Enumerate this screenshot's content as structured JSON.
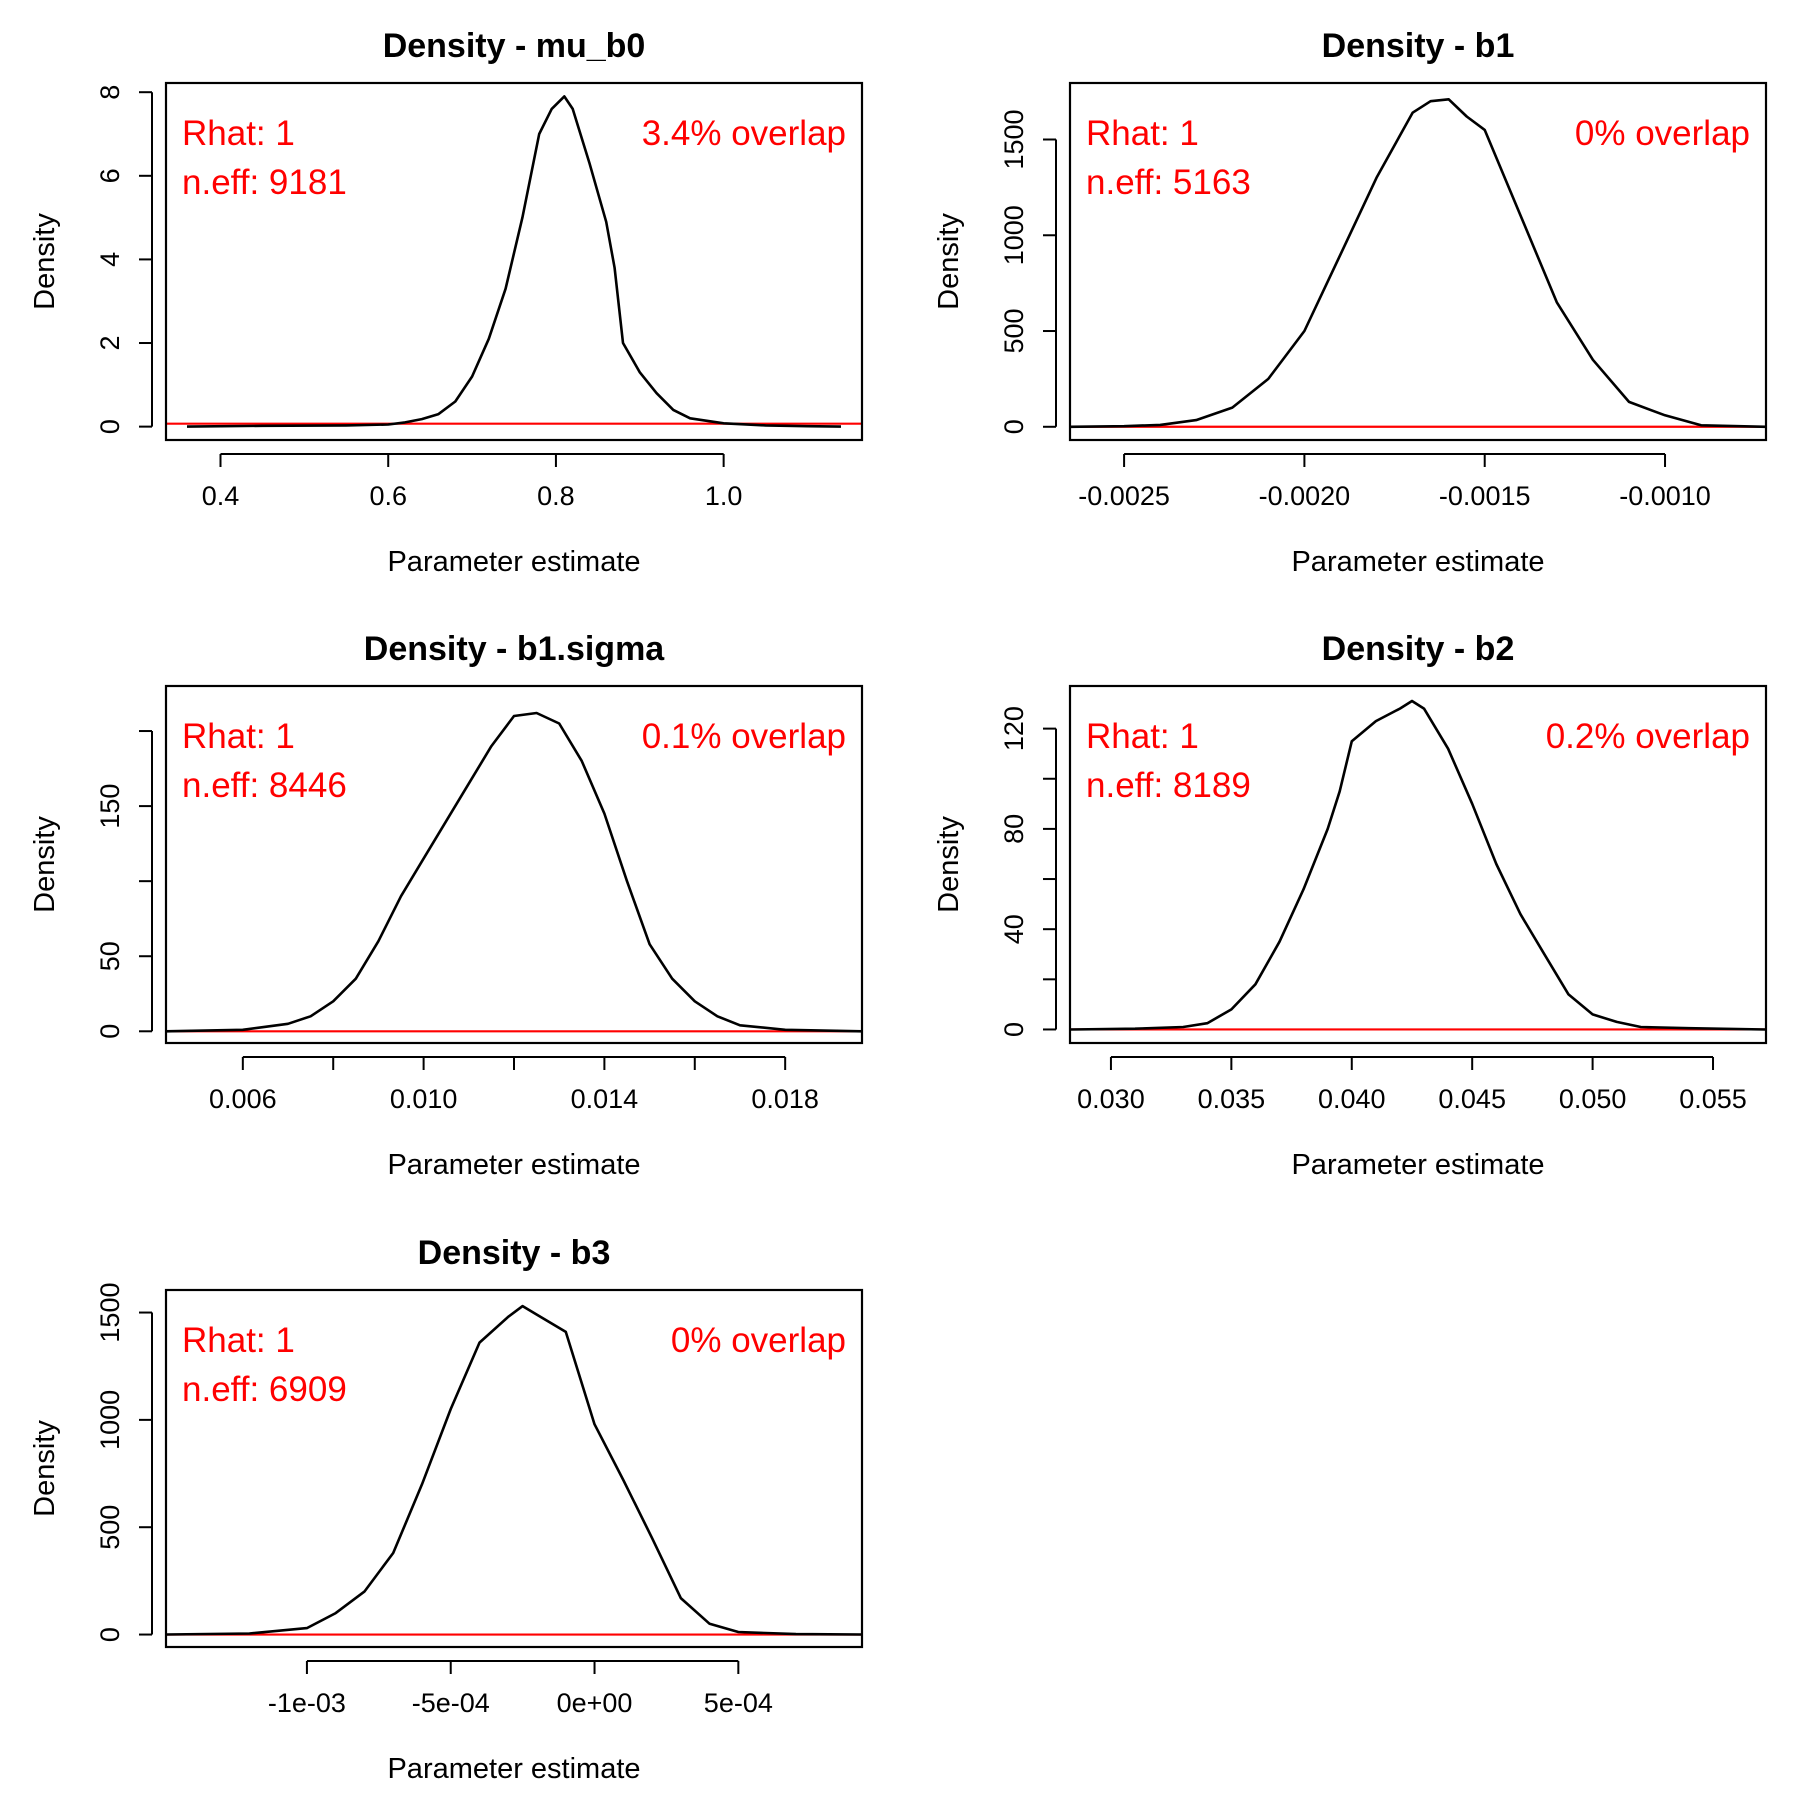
{
  "colors": {
    "density_line": "#000000",
    "zero_line": "#ff0000",
    "annotation": "#ff0000"
  },
  "chart_data": [
    {
      "type": "line",
      "title": "Density - mu_b0",
      "xlabel": "Parameter estimate",
      "ylabel": "Density",
      "xlim": [
        0.335,
        1.165
      ],
      "ylim": [
        -0.32,
        8.22
      ],
      "xticks": [
        0.4,
        0.6,
        0.8,
        1.0
      ],
      "xtick_labels": [
        "0.4",
        "0.6",
        "0.8",
        "1.0"
      ],
      "yticks": [
        0,
        2,
        4,
        6,
        8
      ],
      "ytick_labels": [
        "0",
        "2",
        "4",
        "6",
        "8"
      ],
      "rhat_label": "Rhat: 1",
      "neff_label": "n.eff: 9181",
      "overlap_label": "3.4% overlap",
      "hline": 0.07,
      "series": [
        {
          "x": [
            0.36,
            0.45,
            0.55,
            0.6,
            0.62,
            0.64,
            0.66,
            0.68,
            0.7,
            0.72,
            0.74,
            0.76,
            0.78,
            0.795,
            0.81,
            0.82,
            0.84,
            0.86,
            0.87,
            0.88,
            0.9,
            0.92,
            0.94,
            0.96,
            1.0,
            1.05,
            1.1,
            1.14
          ],
          "y": [
            0.0,
            0.02,
            0.03,
            0.05,
            0.1,
            0.18,
            0.3,
            0.6,
            1.2,
            2.1,
            3.3,
            5.0,
            7.0,
            7.6,
            7.9,
            7.6,
            6.3,
            4.9,
            3.8,
            2.0,
            1.3,
            0.8,
            0.4,
            0.2,
            0.08,
            0.03,
            0.01,
            0.0
          ]
        }
      ]
    },
    {
      "type": "line",
      "title": "Density - b1",
      "xlabel": "Parameter estimate",
      "ylabel": "Density",
      "xlim": [
        -0.00265,
        -0.00072
      ],
      "ylim": [
        -69,
        1795
      ],
      "xticks": [
        -0.0025,
        -0.002,
        -0.0015,
        -0.001
      ],
      "xtick_labels": [
        "-0.0025",
        "-0.0020",
        "-0.0015",
        "-0.0010"
      ],
      "yticks": [
        0,
        500,
        1000,
        1500
      ],
      "ytick_labels": [
        "0",
        "500",
        "1000",
        "1500"
      ],
      "rhat_label": "Rhat: 1",
      "neff_label": "n.eff: 5163",
      "overlap_label": "0% overlap",
      "hline": 0,
      "series": [
        {
          "x": [
            -0.00265,
            -0.0025,
            -0.0024,
            -0.0023,
            -0.0022,
            -0.0021,
            -0.002,
            -0.0019,
            -0.0018,
            -0.0017,
            -0.00165,
            -0.0016,
            -0.00155,
            -0.0015,
            -0.0014,
            -0.0013,
            -0.0012,
            -0.0011,
            -0.001,
            -0.0009,
            -0.00072
          ],
          "y": [
            0,
            3,
            10,
            35,
            100,
            250,
            500,
            900,
            1300,
            1640,
            1700,
            1710,
            1620,
            1550,
            1100,
            650,
            350,
            130,
            60,
            8,
            0
          ]
        }
      ]
    },
    {
      "type": "line",
      "title": "Density - b1.sigma",
      "xlabel": "Parameter estimate",
      "ylabel": "Density",
      "xlim": [
        0.0043,
        0.0197
      ],
      "ylim": [
        -7.8,
        230
      ],
      "xticks": [
        0.006,
        0.008,
        0.01,
        0.012,
        0.014,
        0.016,
        0.018
      ],
      "xtick_labels": [
        "0.006",
        "",
        "0.010",
        "",
        "0.014",
        "",
        "0.018"
      ],
      "yticks": [
        0,
        50,
        100,
        150,
        200
      ],
      "ytick_labels": [
        "0",
        "50",
        "",
        "150",
        ""
      ],
      "rhat_label": "Rhat: 1",
      "neff_label": "n.eff: 8446",
      "overlap_label": "0.1% overlap",
      "hline": 0,
      "series": [
        {
          "x": [
            0.0043,
            0.006,
            0.0065,
            0.007,
            0.0075,
            0.008,
            0.0085,
            0.009,
            0.0095,
            0.01,
            0.0105,
            0.011,
            0.0115,
            0.012,
            0.0125,
            0.013,
            0.0135,
            0.014,
            0.0145,
            0.015,
            0.0155,
            0.016,
            0.0165,
            0.017,
            0.018,
            0.0197
          ],
          "y": [
            0,
            1,
            3,
            5,
            10,
            20,
            35,
            60,
            90,
            115,
            140,
            165,
            190,
            210,
            212,
            205,
            180,
            145,
            100,
            58,
            35,
            20,
            10,
            4,
            1,
            0
          ]
        }
      ]
    },
    {
      "type": "line",
      "title": "Density - b2",
      "xlabel": "Parameter estimate",
      "ylabel": "Density",
      "xlim": [
        0.0283,
        0.0572
      ],
      "ylim": [
        -5.4,
        137
      ],
      "xticks": [
        0.03,
        0.035,
        0.04,
        0.045,
        0.05,
        0.055
      ],
      "xtick_labels": [
        "0.030",
        "0.035",
        "0.040",
        "0.045",
        "0.050",
        "0.055"
      ],
      "yticks": [
        0,
        20,
        40,
        60,
        80,
        100,
        120
      ],
      "ytick_labels": [
        "0",
        "",
        "40",
        "",
        "80",
        "",
        "120"
      ],
      "rhat_label": "Rhat: 1",
      "neff_label": "n.eff: 8189",
      "overlap_label": "0.2% overlap",
      "hline": 0,
      "series": [
        {
          "x": [
            0.0283,
            0.031,
            0.033,
            0.034,
            0.035,
            0.036,
            0.037,
            0.038,
            0.039,
            0.0395,
            0.04,
            0.041,
            0.042,
            0.0425,
            0.043,
            0.044,
            0.045,
            0.046,
            0.047,
            0.048,
            0.049,
            0.05,
            0.051,
            0.052,
            0.054,
            0.0572
          ],
          "y": [
            0,
            0.3,
            1,
            2.5,
            8,
            18,
            35,
            56,
            80,
            95,
            115,
            123,
            128,
            131,
            128,
            112,
            90,
            66,
            46,
            30,
            14,
            6,
            3,
            1,
            0.5,
            0
          ]
        }
      ]
    },
    {
      "type": "line",
      "title": "Density - b3",
      "xlabel": "Parameter estimate",
      "ylabel": "Density",
      "xlim": [
        -0.00149,
        0.00093
      ],
      "ylim": [
        -58,
        1605
      ],
      "xticks": [
        -0.001,
        -0.0005,
        0.0,
        0.0005
      ],
      "xtick_labels": [
        "-1e-03",
        "-5e-04",
        "0e+00",
        "5e-04"
      ],
      "yticks": [
        0,
        500,
        1000,
        1500
      ],
      "ytick_labels": [
        "0",
        "500",
        "1000",
        "1500"
      ],
      "rhat_label": "Rhat: 1",
      "neff_label": "n.eff: 6909",
      "overlap_label": "0% overlap",
      "hline": 0,
      "series": [
        {
          "x": [
            -0.00149,
            -0.0012,
            -0.001,
            -0.0009,
            -0.0008,
            -0.0007,
            -0.0006,
            -0.0005,
            -0.0004,
            -0.0003,
            -0.00025,
            -0.0002,
            -0.0001,
            0.0,
            0.0001,
            0.0002,
            0.0003,
            0.0004,
            0.0005,
            0.0007,
            0.00093
          ],
          "y": [
            0,
            5,
            30,
            100,
            200,
            380,
            700,
            1050,
            1360,
            1480,
            1530,
            1490,
            1410,
            980,
            720,
            450,
            170,
            50,
            12,
            2,
            0
          ]
        }
      ]
    }
  ]
}
